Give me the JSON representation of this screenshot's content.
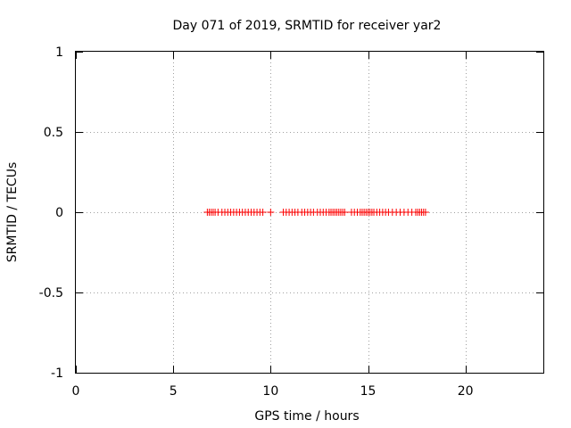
{
  "chart_data": {
    "type": "scatter",
    "title": "Day 071 of 2019, SRMTID for receiver yar2",
    "xlabel": "GPS time / hours",
    "ylabel": "SRMTID / TECUs",
    "xlim": [
      0,
      24
    ],
    "ylim": [
      -1,
      1
    ],
    "xticks": [
      0,
      5,
      10,
      15,
      20
    ],
    "xtick_labels": [
      "0",
      "5",
      "10",
      "15",
      "20"
    ],
    "yticks": [
      -1,
      -0.5,
      0,
      0.5,
      1
    ],
    "ytick_labels": [
      "-1",
      "-0.5",
      "0",
      "0.5",
      "1"
    ],
    "grid": true,
    "marker": "+",
    "series": [
      {
        "name": "SRMTID",
        "color": "#ff0000",
        "x": [
          6.75,
          6.85,
          6.95,
          7.05,
          7.15,
          7.3,
          7.5,
          7.65,
          7.8,
          7.95,
          8.1,
          8.25,
          8.4,
          8.55,
          8.7,
          8.85,
          9.0,
          9.15,
          9.3,
          9.45,
          9.6,
          10.0,
          10.65,
          10.8,
          10.95,
          11.1,
          11.25,
          11.4,
          11.6,
          11.75,
          11.9,
          12.05,
          12.2,
          12.4,
          12.55,
          12.7,
          12.85,
          13.0,
          13.1,
          13.2,
          13.3,
          13.4,
          13.5,
          13.6,
          13.7,
          13.8,
          14.15,
          14.3,
          14.45,
          14.6,
          14.7,
          14.8,
          14.9,
          15.0,
          15.1,
          15.2,
          15.3,
          15.45,
          15.6,
          15.75,
          15.9,
          16.05,
          16.25,
          16.45,
          16.65,
          16.85,
          17.05,
          17.25,
          17.45,
          17.55,
          17.65,
          17.75,
          17.85,
          17.95
        ],
        "y": [
          0,
          0,
          0,
          0,
          0,
          0,
          0,
          0,
          0,
          0,
          0,
          0,
          0,
          0,
          0,
          0,
          0,
          0,
          0,
          0,
          0,
          0,
          0,
          0,
          0,
          0,
          0,
          0,
          0,
          0,
          0,
          0,
          0,
          0,
          0,
          0,
          0,
          0,
          0,
          0,
          0,
          0,
          0,
          0,
          0,
          0,
          0,
          0,
          0,
          0,
          0,
          0,
          0,
          0,
          0,
          0,
          0,
          0,
          0,
          0,
          0,
          0,
          0,
          0,
          0,
          0,
          0,
          0,
          0,
          0,
          0,
          0,
          0,
          0
        ]
      }
    ]
  }
}
